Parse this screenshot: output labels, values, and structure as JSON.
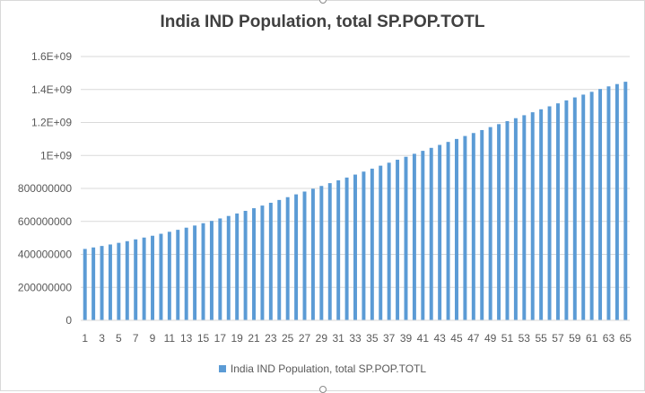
{
  "chart_data": {
    "type": "bar",
    "title": "India IND Population, total SP.POP.TOTL",
    "xlabel": "",
    "ylabel": "",
    "ylim": [
      0,
      1600000000
    ],
    "y_ticks": [
      0,
      200000000,
      400000000,
      600000000,
      800000000,
      1000000000,
      1200000000,
      1400000000,
      1600000000
    ],
    "y_tick_labels": [
      "0",
      "200000000",
      "400000000",
      "600000000",
      "800000000",
      "1E+09",
      "1.2E+09",
      "1.4E+09",
      "1.6E+09"
    ],
    "categories": [
      1,
      2,
      3,
      4,
      5,
      6,
      7,
      8,
      9,
      10,
      11,
      12,
      13,
      14,
      15,
      16,
      17,
      18,
      19,
      20,
      21,
      22,
      23,
      24,
      25,
      26,
      27,
      28,
      29,
      30,
      31,
      32,
      33,
      34,
      35,
      36,
      37,
      38,
      39,
      40,
      41,
      42,
      43,
      44,
      45,
      46,
      47,
      48,
      49,
      50,
      51,
      52,
      53,
      54,
      55,
      56,
      57,
      58,
      59,
      60,
      61,
      62,
      63,
      64,
      65
    ],
    "x_tick_labels": [
      "1",
      "3",
      "5",
      "7",
      "9",
      "11",
      "13",
      "15",
      "17",
      "19",
      "21",
      "23",
      "25",
      "27",
      "29",
      "31",
      "33",
      "35",
      "37",
      "39",
      "41",
      "43",
      "45",
      "47",
      "49",
      "51",
      "53",
      "55",
      "57",
      "59",
      "61",
      "63",
      "65"
    ],
    "series": [
      {
        "name": "India IND Population, total SP.POP.TOTL",
        "values": [
          433000000,
          442000000,
          451000000,
          460000000,
          470000000,
          480000000,
          491000000,
          502000000,
          513000000,
          525000000,
          537000000,
          549000000,
          562000000,
          575000000,
          589000000,
          603000000,
          618000000,
          633000000,
          648000000,
          664000000,
          680000000,
          696000000,
          713000000,
          730000000,
          747000000,
          764000000,
          781000000,
          798000000,
          815000000,
          832000000,
          849000000,
          866000000,
          884000000,
          902000000,
          920000000,
          938000000,
          956000000,
          974000000,
          992000000,
          1010000000,
          1028000000,
          1046000000,
          1064000000,
          1082000000,
          1100000000,
          1118000000,
          1136000000,
          1154000000,
          1172000000,
          1190000000,
          1208000000,
          1226000000,
          1244000000,
          1262000000,
          1280000000,
          1298000000,
          1316000000,
          1334000000,
          1352000000,
          1369000000,
          1386000000,
          1403000000,
          1419000000,
          1433000000,
          1447000000
        ]
      }
    ],
    "grid": true,
    "legend_position": "bottom",
    "bar_color": "#5b9bd5",
    "gridline_color": "#d9d9d9"
  }
}
